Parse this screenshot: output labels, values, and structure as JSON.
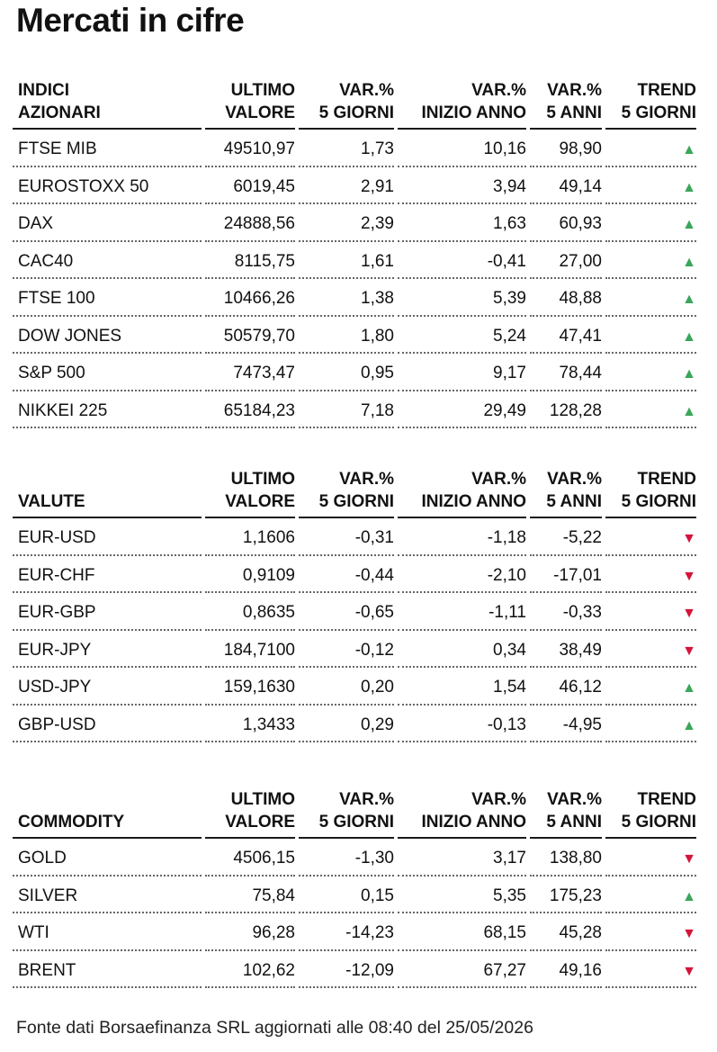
{
  "title": "Mercati in cifre",
  "colors": {
    "up": "#3aa65a",
    "down": "#d4143a"
  },
  "sections": [
    {
      "id": "indici",
      "headers": {
        "name": [
          "INDICI",
          "AZIONARI"
        ],
        "last": [
          "ULTIMO",
          "VALORE"
        ],
        "var5d": [
          "VAR.%",
          "5 GIORNI"
        ],
        "varytd": [
          "VAR.%",
          "INIZIO ANNO"
        ],
        "var5y": [
          "VAR.%",
          "5 ANNI"
        ],
        "trend": [
          "TREND",
          "5 GIORNI"
        ]
      },
      "rows": [
        {
          "name": "FTSE MIB",
          "last": "49510,97",
          "var5d": "1,73",
          "varytd": "10,16",
          "var5y": "98,90",
          "trend": "up"
        },
        {
          "name": "EUROSTOXX 50",
          "last": "6019,45",
          "var5d": "2,91",
          "varytd": "3,94",
          "var5y": "49,14",
          "trend": "up"
        },
        {
          "name": "DAX",
          "last": "24888,56",
          "var5d": "2,39",
          "varytd": "1,63",
          "var5y": "60,93",
          "trend": "up"
        },
        {
          "name": "CAC40",
          "last": "8115,75",
          "var5d": "1,61",
          "varytd": "-0,41",
          "var5y": "27,00",
          "trend": "up"
        },
        {
          "name": "FTSE 100",
          "last": "10466,26",
          "var5d": "1,38",
          "varytd": "5,39",
          "var5y": "48,88",
          "trend": "up"
        },
        {
          "name": "DOW JONES",
          "last": "50579,70",
          "var5d": "1,80",
          "varytd": "5,24",
          "var5y": "47,41",
          "trend": "up"
        },
        {
          "name": "S&P 500",
          "last": "7473,47",
          "var5d": "0,95",
          "varytd": "9,17",
          "var5y": "78,44",
          "trend": "up"
        },
        {
          "name": "NIKKEI 225",
          "last": "65184,23",
          "var5d": "7,18",
          "varytd": "29,49",
          "var5y": "128,28",
          "trend": "up"
        }
      ]
    },
    {
      "id": "valute",
      "headers": {
        "name": [
          "",
          "VALUTE"
        ],
        "last": [
          "ULTIMO",
          "VALORE"
        ],
        "var5d": [
          "VAR.%",
          "5 GIORNI"
        ],
        "varytd": [
          "VAR.%",
          "INIZIO ANNO"
        ],
        "var5y": [
          "VAR.%",
          "5 ANNI"
        ],
        "trend": [
          "TREND",
          "5 GIORNI"
        ]
      },
      "rows": [
        {
          "name": "EUR-USD",
          "last": "1,1606",
          "var5d": "-0,31",
          "varytd": "-1,18",
          "var5y": "-5,22",
          "trend": "down"
        },
        {
          "name": "EUR-CHF",
          "last": "0,9109",
          "var5d": "-0,44",
          "varytd": "-2,10",
          "var5y": "-17,01",
          "trend": "down"
        },
        {
          "name": "EUR-GBP",
          "last": "0,8635",
          "var5d": "-0,65",
          "varytd": "-1,11",
          "var5y": "-0,33",
          "trend": "down"
        },
        {
          "name": "EUR-JPY",
          "last": "184,7100",
          "var5d": "-0,12",
          "varytd": "0,34",
          "var5y": "38,49",
          "trend": "down"
        },
        {
          "name": "USD-JPY",
          "last": "159,1630",
          "var5d": "0,20",
          "varytd": "1,54",
          "var5y": "46,12",
          "trend": "up"
        },
        {
          "name": "GBP-USD",
          "last": "1,3433",
          "var5d": "0,29",
          "varytd": "-0,13",
          "var5y": "-4,95",
          "trend": "up"
        }
      ]
    },
    {
      "id": "commodity",
      "headers": {
        "name": [
          "",
          "COMMODITY"
        ],
        "last": [
          "ULTIMO",
          "VALORE"
        ],
        "var5d": [
          "VAR.%",
          "5 GIORNI"
        ],
        "varytd": [
          "VAR.%",
          "INIZIO ANNO"
        ],
        "var5y": [
          "VAR.%",
          "5 ANNI"
        ],
        "trend": [
          "TREND",
          "5 GIORNI"
        ]
      },
      "rows": [
        {
          "name": "GOLD",
          "last": "4506,15",
          "var5d": "-1,30",
          "varytd": "3,17",
          "var5y": "138,80",
          "trend": "down"
        },
        {
          "name": "SILVER",
          "last": "75,84",
          "var5d": "0,15",
          "varytd": "5,35",
          "var5y": "175,23",
          "trend": "up"
        },
        {
          "name": "WTI",
          "last": "96,28",
          "var5d": "-14,23",
          "varytd": "68,15",
          "var5y": "45,28",
          "trend": "down"
        },
        {
          "name": "BRENT",
          "last": "102,62",
          "var5d": "-12,09",
          "varytd": "67,27",
          "var5y": "49,16",
          "trend": "down"
        }
      ]
    }
  ],
  "source_note": "Fonte dati Borsaefinanza SRL aggiornati alle 08:40 del 25/05/2026"
}
